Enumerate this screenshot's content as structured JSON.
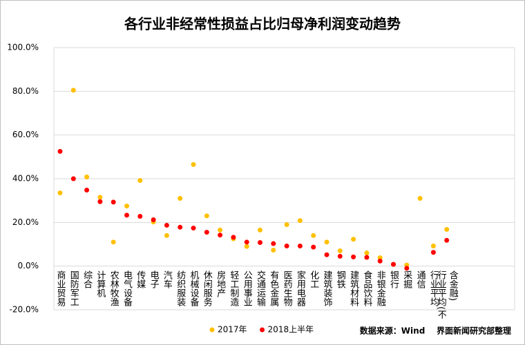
{
  "chart_data": {
    "type": "scatter",
    "title": "各行业非经常性损益占比归母净利润变动趋势",
    "categories": [
      "商业贸易",
      "国防军工",
      "综合",
      "计算机",
      "农林牧渔",
      "电气设备",
      "传媒",
      "电子",
      "汽车",
      "纺织服装",
      "机械设备",
      "休闲服务",
      "房地产",
      "轻工制造",
      "公用事业",
      "交通运输",
      "有色金属",
      "医药生物",
      "家用电器",
      "化工",
      "建筑装饰",
      "钢铁",
      "建筑材料",
      "食品饮料",
      "非银金融",
      "银行",
      "采掘",
      "通信",
      "行业平均",
      "行业平均(不含金融)"
    ],
    "series": [
      {
        "name": "2017年",
        "color": "#ffc000",
        "values": [
          33.5,
          80.5,
          40.8,
          31.5,
          11,
          27.5,
          39.2,
          20.2,
          14,
          31,
          46.5,
          23,
          16.5,
          12.5,
          9,
          16.5,
          7.3,
          19,
          20.8,
          14,
          11,
          7,
          12.3,
          6,
          3.8,
          0.8,
          0.5,
          31,
          9.2,
          16.8
        ]
      },
      {
        "name": "2018上半年",
        "color": "#ff0000",
        "values": [
          52.5,
          40,
          34.8,
          29.5,
          29.3,
          23.3,
          22.8,
          21.2,
          18.7,
          17.8,
          17.4,
          15.5,
          14.2,
          13.2,
          11,
          10.8,
          10.3,
          9.2,
          9.2,
          8.7,
          5.2,
          4.5,
          4.2,
          4,
          2.3,
          0.8,
          -1,
          null,
          6.3,
          11.8
        ]
      }
    ],
    "ylim": [
      -20,
      100
    ],
    "yticks": [
      {
        "value": -20,
        "label": "-20.0%"
      },
      {
        "value": 0,
        "label": "0.0%"
      },
      {
        "value": 20,
        "label": "20.0%"
      },
      {
        "value": 40,
        "label": "40.0%"
      },
      {
        "value": 60,
        "label": "60.0%"
      },
      {
        "value": 80,
        "label": "80.0%"
      },
      {
        "value": 100,
        "label": "100.0%"
      }
    ],
    "grid": true,
    "source": "数据来源：Wind    界面新闻研究部整理"
  }
}
